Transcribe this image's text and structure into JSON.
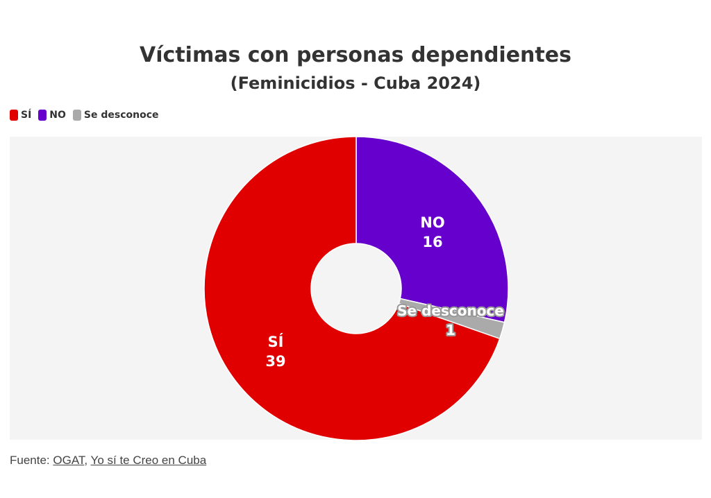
{
  "chart_data": {
    "type": "pie",
    "title": "Víctimas con personas dependientes",
    "subtitle": "(Feminicidios - Cuba 2024)",
    "categories": [
      "SÍ",
      "NO",
      "Se desconoce"
    ],
    "values": [
      39,
      16,
      1
    ],
    "colors": [
      "#e00000",
      "#6600cc",
      "#aaaaaa"
    ],
    "legend": {
      "placement": "top-left",
      "entries": [
        "SÍ",
        "NO",
        "Se desconoce"
      ]
    },
    "donut": true
  },
  "footer": {
    "prefix": "Fuente: ",
    "source1": "OGAT",
    "separator": ", ",
    "source2": "Yo sí te Creo en Cuba"
  }
}
